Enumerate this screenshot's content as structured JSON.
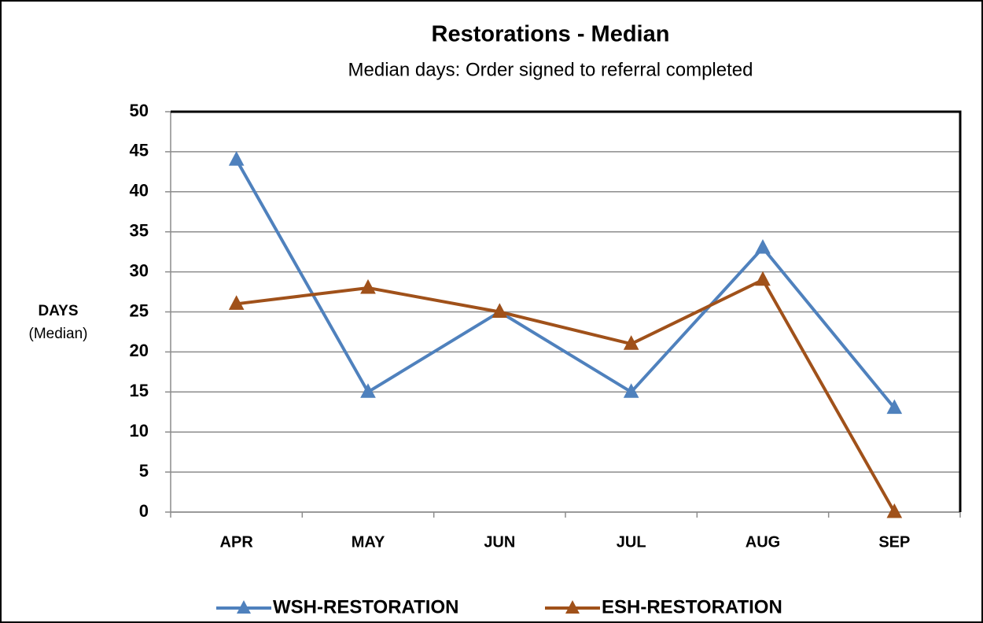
{
  "chart_data": {
    "type": "line",
    "title": "Restorations - Median",
    "subtitle": "Median days: Order signed to referral completed",
    "ylabel": "DAYS",
    "ylabel_note": "(Median)",
    "categories": [
      "APR",
      "MAY",
      "JUN",
      "JUL",
      "AUG",
      "SEP"
    ],
    "series": [
      {
        "name": "WSH-RESTORATION",
        "color": "#4f81bd",
        "values": [
          44,
          15,
          25,
          15,
          33,
          13
        ]
      },
      {
        "name": "ESH-RESTORATION",
        "color": "#a0511a",
        "values": [
          26,
          28,
          25,
          21,
          29,
          0
        ]
      }
    ],
    "ylim": [
      0,
      50
    ],
    "yticks": [
      0,
      5,
      10,
      15,
      20,
      25,
      30,
      35,
      40,
      45,
      50
    ],
    "grid": true,
    "legend": "bottom"
  }
}
